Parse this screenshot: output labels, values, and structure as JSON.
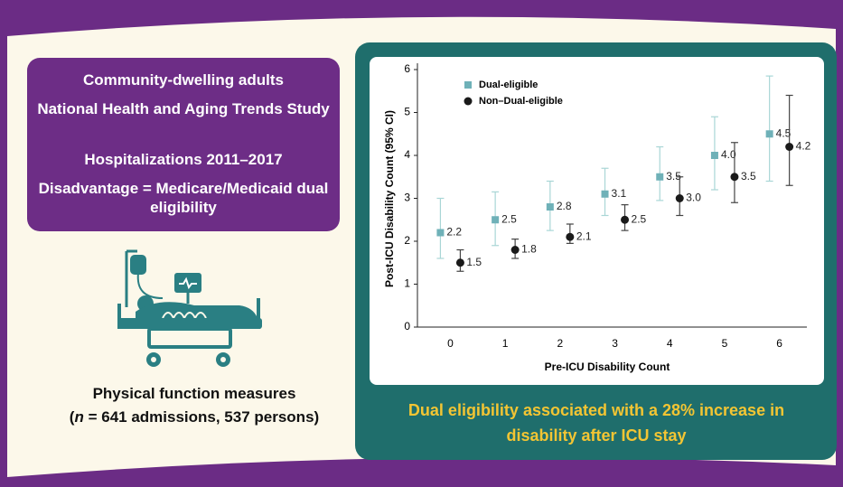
{
  "left_panel": {
    "lines": [
      "Community-dwelling adults",
      "National Health and Aging Trends Study",
      "Hospitalizations 2011–2017",
      "Disadvantage = Medicare/Medicaid dual eligibility"
    ]
  },
  "measures": {
    "title": "Physical function measures",
    "open": "(",
    "n": "n",
    "rest": " = 641 admissions, 537 persons)"
  },
  "chart_data": {
    "type": "scatter",
    "x_label": "Pre-ICU Disability Count",
    "y_label": "Post-ICU Disability Count (95% CI)",
    "x": [
      0,
      1,
      2,
      3,
      4,
      5,
      6
    ],
    "xlim": [
      -0.6,
      6.5
    ],
    "xticks": [
      0,
      1,
      2,
      3,
      4,
      5,
      6
    ],
    "ylim": [
      0,
      6
    ],
    "yticks": [
      0,
      1,
      2,
      3,
      4,
      5,
      6
    ],
    "legend": "upper left",
    "series": [
      {
        "name": "Dual-eligible",
        "color": "#6fb1b8",
        "bar_color": "#a9d6d6",
        "marker": "square",
        "values": [
          2.2,
          2.5,
          2.8,
          3.1,
          3.5,
          4.0,
          4.5
        ],
        "value_labels": [
          "2.2",
          "2.5",
          "2.8",
          "3.1",
          "3.5",
          "4.0",
          "4.5"
        ],
        "ci_low": [
          1.6,
          1.9,
          2.25,
          2.6,
          2.95,
          3.2,
          3.4
        ],
        "ci_high": [
          3.0,
          3.15,
          3.4,
          3.7,
          4.2,
          4.9,
          5.85
        ]
      },
      {
        "name": "Non–Dual-eligible",
        "color": "#1a1a1a",
        "bar_color": "#444444",
        "marker": "circle",
        "values": [
          1.5,
          1.8,
          2.1,
          2.5,
          3.0,
          3.5,
          4.2
        ],
        "value_labels": [
          "1.5",
          "1.8",
          "2.1",
          "2.5",
          "3.0",
          "3.5",
          "4.2"
        ],
        "ci_low": [
          1.3,
          1.6,
          1.95,
          2.25,
          2.6,
          2.9,
          3.3
        ],
        "ci_high": [
          1.8,
          2.05,
          2.4,
          2.85,
          3.5,
          4.3,
          5.4
        ]
      }
    ]
  },
  "conclusion": "Dual eligibility associated with a 28% increase in disability after ICU stay"
}
